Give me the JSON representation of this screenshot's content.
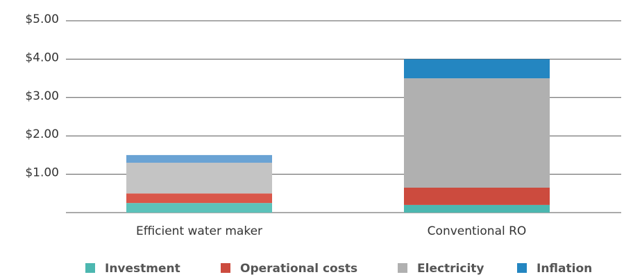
{
  "chart_data": {
    "type": "stacked_bar",
    "categories": [
      "Efficient water maker",
      "Conventional RO"
    ],
    "series": [
      {
        "name": "Investment",
        "color": "#4cb7b0",
        "colors": [
          "#5cc2ba",
          "#4cb7b0"
        ],
        "values": [
          0.25,
          0.2
        ]
      },
      {
        "name": "Operational costs",
        "color": "#cc4b3e",
        "colors": [
          "#d9574a",
          "#cc4b3e"
        ],
        "values": [
          0.25,
          0.45
        ]
      },
      {
        "name": "Electricity",
        "color": "#b0b0b0",
        "colors": [
          "#c4c4c4",
          "#b0b0b0"
        ],
        "values": [
          0.8,
          2.85
        ]
      },
      {
        "name": "Inflation",
        "color": "#2486c1",
        "colors": [
          "#6aa3d4",
          "#2486c1"
        ],
        "values": [
          0.2,
          0.5
        ]
      }
    ],
    "ylim": [
      0,
      5
    ],
    "yticks": [
      {
        "value": 1,
        "label": "$1.00"
      },
      {
        "value": 2,
        "label": "$2.00"
      },
      {
        "value": 3,
        "label": "$3.00"
      },
      {
        "value": 4,
        "label": "$4.00"
      },
      {
        "value": 5,
        "label": "$5.00"
      }
    ],
    "grid": true,
    "legend": "bottom"
  }
}
